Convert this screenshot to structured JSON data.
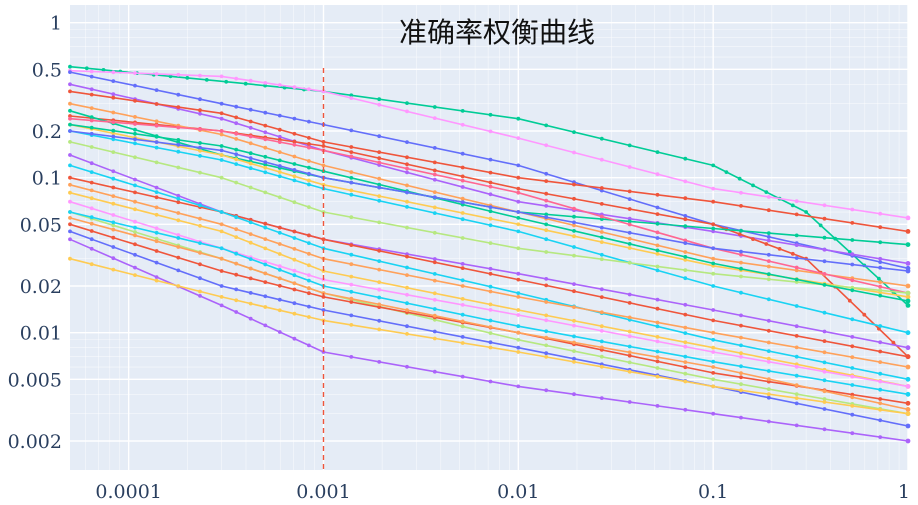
{
  "chart_data": {
    "type": "line",
    "title": "准确率权衡曲线",
    "xlabel": "",
    "ylabel": "",
    "x_scale": "log",
    "y_scale": "log",
    "xlim": [
      5e-05,
      1
    ],
    "ylim": [
      0.0013,
      1.3
    ],
    "x_ticks": [
      {
        "value": 0.0001,
        "label": "0.0001"
      },
      {
        "value": 0.001,
        "label": "0.001"
      },
      {
        "value": 0.01,
        "label": "0.01"
      },
      {
        "value": 0.1,
        "label": "0.1"
      },
      {
        "value": 1,
        "label": "1"
      }
    ],
    "y_ticks": [
      {
        "value": 1,
        "label": "1"
      },
      {
        "value": 0.5,
        "label": "0.5"
      },
      {
        "value": 0.2,
        "label": "0.2"
      },
      {
        "value": 0.1,
        "label": "0.1"
      },
      {
        "value": 0.05,
        "label": "0.05"
      },
      {
        "value": 0.02,
        "label": "0.02"
      },
      {
        "value": 0.01,
        "label": "0.01"
      },
      {
        "value": 0.005,
        "label": "0.005"
      },
      {
        "value": 0.002,
        "label": "0.002"
      }
    ],
    "grid": true,
    "legend": "none",
    "reference_line": {
      "orientation": "vertical",
      "x": 0.001,
      "style": "dashed",
      "color": "#ef553b"
    },
    "series": [
      {
        "color": "#00cc96",
        "x": [
          5e-05,
          0.0002,
          0.001,
          0.01,
          0.1,
          0.3,
          1
        ],
        "y": [
          0.52,
          0.44,
          0.36,
          0.24,
          0.12,
          0.06,
          0.015
        ]
      },
      {
        "color": "#ff97ff",
        "x": [
          5e-05,
          0.0003,
          0.001,
          0.01,
          0.1,
          1
        ],
        "y": [
          0.49,
          0.45,
          0.36,
          0.18,
          0.085,
          0.055
        ]
      },
      {
        "color": "#636efa",
        "x": [
          5e-05,
          0.0003,
          0.001,
          0.01,
          0.1,
          1
        ],
        "y": [
          0.48,
          0.3,
          0.22,
          0.12,
          0.05,
          0.026
        ]
      },
      {
        "color": "#ab63fa",
        "x": [
          5e-05,
          0.0003,
          0.001,
          0.01,
          0.1,
          1
        ],
        "y": [
          0.4,
          0.24,
          0.15,
          0.07,
          0.045,
          0.028
        ]
      },
      {
        "color": "#ef553b",
        "x": [
          5e-05,
          0.0003,
          0.001,
          0.01,
          0.1,
          1
        ],
        "y": [
          0.36,
          0.26,
          0.17,
          0.1,
          0.07,
          0.045
        ]
      },
      {
        "color": "#ef553b",
        "x": [
          5e-05,
          0.0003,
          0.001,
          0.01,
          0.1,
          0.3,
          1
        ],
        "y": [
          0.25,
          0.2,
          0.16,
          0.085,
          0.05,
          0.03,
          0.007
        ]
      },
      {
        "color": "#00cc96",
        "x": [
          5e-05,
          0.0003,
          0.001,
          0.01,
          0.1,
          1
        ],
        "y": [
          0.27,
          0.14,
          0.1,
          0.06,
          0.047,
          0.037
        ]
      },
      {
        "color": "#ffa15a",
        "x": [
          5e-05,
          0.0003,
          0.001,
          0.01,
          0.1,
          1
        ],
        "y": [
          0.3,
          0.19,
          0.12,
          0.06,
          0.03,
          0.02
        ]
      },
      {
        "color": "#fecb52",
        "x": [
          5e-05,
          0.0003,
          0.001,
          0.01,
          0.1,
          1
        ],
        "y": [
          0.22,
          0.14,
          0.09,
          0.05,
          0.027,
          0.017
        ]
      },
      {
        "color": "#ff6692",
        "x": [
          5e-05,
          0.0003,
          0.001,
          0.01,
          0.1,
          1
        ],
        "y": [
          0.24,
          0.2,
          0.15,
          0.08,
          0.035,
          0.018
        ]
      },
      {
        "color": "#19d3f3",
        "x": [
          5e-05,
          0.0003,
          0.001,
          0.01,
          0.1,
          1
        ],
        "y": [
          0.2,
          0.13,
          0.085,
          0.045,
          0.02,
          0.01
        ]
      },
      {
        "color": "#b6e880",
        "x": [
          5e-05,
          0.0003,
          0.001,
          0.01,
          0.1,
          1
        ],
        "y": [
          0.17,
          0.1,
          0.06,
          0.035,
          0.024,
          0.018
        ]
      },
      {
        "color": "#00cc96",
        "x": [
          5e-05,
          0.0003,
          0.001,
          0.01,
          0.1,
          1
        ],
        "y": [
          0.22,
          0.16,
          0.11,
          0.055,
          0.028,
          0.016
        ]
      },
      {
        "color": "#636efa",
        "x": [
          5e-05,
          0.0003,
          0.001,
          0.01,
          0.1,
          1
        ],
        "y": [
          0.2,
          0.15,
          0.1,
          0.06,
          0.035,
          0.025
        ]
      },
      {
        "color": "#ab63fa",
        "x": [
          5e-05,
          0.0003,
          0.001,
          0.01,
          0.1,
          1
        ],
        "y": [
          0.14,
          0.06,
          0.04,
          0.024,
          0.014,
          0.008
        ]
      },
      {
        "color": "#ef553b",
        "x": [
          5e-05,
          0.0003,
          0.001,
          0.01,
          0.1,
          1
        ],
        "y": [
          0.1,
          0.06,
          0.04,
          0.022,
          0.012,
          0.007
        ]
      },
      {
        "color": "#19d3f3",
        "x": [
          5e-05,
          0.0003,
          0.001,
          0.01,
          0.1,
          1
        ],
        "y": [
          0.12,
          0.06,
          0.035,
          0.018,
          0.009,
          0.005
        ]
      },
      {
        "color": "#ffa15a",
        "x": [
          5e-05,
          0.0003,
          0.001,
          0.01,
          0.1,
          1
        ],
        "y": [
          0.09,
          0.05,
          0.03,
          0.017,
          0.01,
          0.006
        ]
      },
      {
        "color": "#fecb52",
        "x": [
          5e-05,
          0.0003,
          0.001,
          0.01,
          0.1,
          1
        ],
        "y": [
          0.08,
          0.045,
          0.025,
          0.014,
          0.008,
          0.0045
        ]
      },
      {
        "color": "#ff97ff",
        "x": [
          5e-05,
          0.0003,
          0.001,
          0.01,
          0.1,
          1
        ],
        "y": [
          0.07,
          0.035,
          0.022,
          0.013,
          0.0075,
          0.0045
        ]
      },
      {
        "color": "#b6e880",
        "x": [
          5e-05,
          0.0003,
          0.001,
          0.01,
          0.1,
          1
        ],
        "y": [
          0.06,
          0.03,
          0.018,
          0.009,
          0.005,
          0.003
        ]
      },
      {
        "color": "#ef553b",
        "x": [
          5e-05,
          0.0003,
          0.001,
          0.01,
          0.1,
          1
        ],
        "y": [
          0.05,
          0.025,
          0.017,
          0.01,
          0.0055,
          0.0035
        ]
      },
      {
        "color": "#636efa",
        "x": [
          5e-05,
          0.0003,
          0.001,
          0.01,
          0.1,
          1
        ],
        "y": [
          0.045,
          0.02,
          0.014,
          0.008,
          0.0045,
          0.0025
        ]
      },
      {
        "color": "#ffa15a",
        "x": [
          5e-05,
          0.0003,
          0.001,
          0.01,
          0.1,
          1
        ],
        "y": [
          0.055,
          0.03,
          0.018,
          0.01,
          0.006,
          0.0032
        ]
      },
      {
        "color": "#19d3f3",
        "x": [
          5e-05,
          0.0003,
          0.001,
          0.01,
          0.1,
          1
        ],
        "y": [
          0.06,
          0.035,
          0.02,
          0.011,
          0.0065,
          0.004
        ]
      },
      {
        "color": "#ab63fa",
        "x": [
          5e-05,
          0.0003,
          0.001,
          0.01,
          0.1,
          1
        ],
        "y": [
          0.04,
          0.015,
          0.0075,
          0.0045,
          0.003,
          0.002
        ]
      },
      {
        "color": "#fecb52",
        "x": [
          5e-05,
          0.0003,
          0.001,
          0.01,
          0.1,
          1
        ],
        "y": [
          0.03,
          0.017,
          0.012,
          0.0075,
          0.0045,
          0.003
        ]
      }
    ]
  }
}
